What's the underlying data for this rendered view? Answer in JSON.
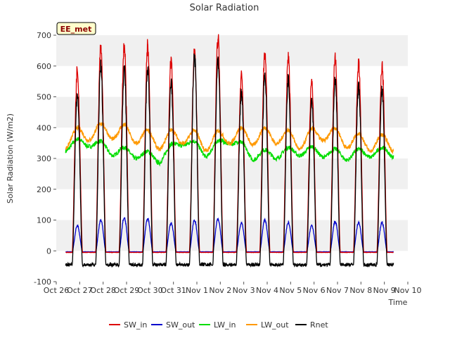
{
  "chart_data": {
    "type": "line",
    "title": "Solar Radiation",
    "xlabel": "Time",
    "ylabel": "Solar Radiation (W/m2)",
    "station_badge": "EE_met",
    "x_ticks": [
      "Oct 26",
      "Oct 27",
      "Oct 28",
      "Oct 29",
      "Oct 30",
      "Oct 31",
      "Nov 1",
      "Nov 2",
      "Nov 3",
      "Nov 4",
      "Nov 5",
      "Nov 6",
      "Nov 7",
      "Nov 8",
      "Nov 9",
      "Nov 10"
    ],
    "y_ticks": [
      -100,
      0,
      100,
      200,
      300,
      400,
      500,
      600,
      700
    ],
    "xlim": [
      0,
      15
    ],
    "ylim": [
      -100,
      700
    ],
    "grid": "horizontal bands",
    "legend": "bottom",
    "days_start": 0.4,
    "n_days": 14,
    "series": [
      {
        "name": "SW_in",
        "color": "#dd0000",
        "kind": "diurnal",
        "night": -5,
        "daily_peak": [
          590,
          660,
          665,
          668,
          618,
          645,
          695,
          565,
          648,
          625,
          545,
          630,
          605,
          600
        ]
      },
      {
        "name": "SW_out",
        "color": "#0000cc",
        "kind": "diurnal",
        "night": -3,
        "daily_peak": [
          82,
          100,
          108,
          105,
          90,
          100,
          105,
          90,
          100,
          92,
          82,
          95,
          92,
          92
        ]
      },
      {
        "name": "LW_in",
        "color": "#00dd00",
        "kind": "daily_mean",
        "daily_mean": [
          340,
          355,
          325,
          315,
          300,
          360,
          320,
          365,
          310,
          315,
          325,
          320,
          310,
          320
        ]
      },
      {
        "name": "LW_out",
        "color": "#ff9900",
        "kind": "daily_mean",
        "daily_mean": [
          360,
          385,
          390,
          375,
          355,
          375,
          350,
          375,
          370,
          375,
          355,
          385,
          360,
          350
        ]
      },
      {
        "name": "Rnet",
        "color": "#000000",
        "kind": "diurnal",
        "night": -45,
        "daily_peak": [
          505,
          600,
          590,
          592,
          550,
          630,
          620,
          515,
          575,
          555,
          485,
          555,
          535,
          525
        ]
      }
    ]
  }
}
